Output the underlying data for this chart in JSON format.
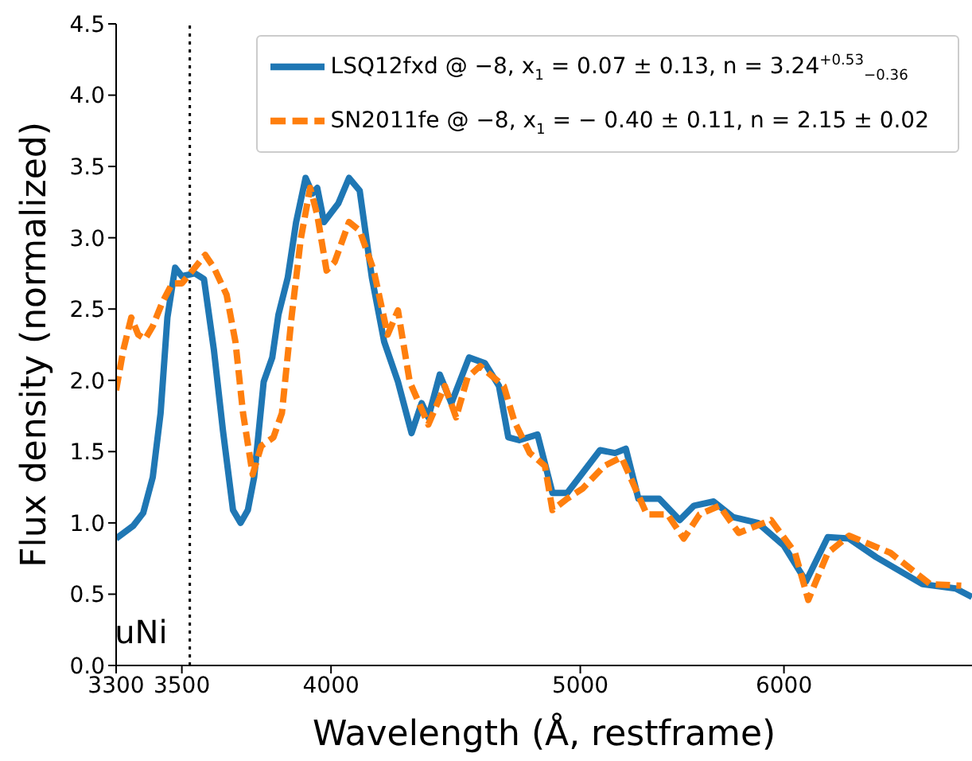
{
  "chart_data": {
    "type": "line",
    "xlabel": "Wavelength (Å, restframe)",
    "ylabel": "Flux density (normalized)",
    "log": "x",
    "xlim": [
      3300,
      7100
    ],
    "xticks": [
      3300,
      3500,
      4000,
      5000,
      6000
    ],
    "ylim": [
      0,
      4.5
    ],
    "yticks": [
      {
        "value": 0,
        "label": "0.0"
      },
      0.5,
      {
        "value": 1,
        "label": "1.0"
      },
      1.5,
      {
        "value": 2,
        "label": "2.0"
      },
      2.5,
      {
        "value": 3,
        "label": "3.0"
      },
      3.5,
      {
        "value": 4,
        "label": "4.0"
      },
      4.5
    ],
    "legend": "top right",
    "series": [
      {
        "name": "LSQ12fxd @ −8, x$_{1}$ = 0.07 ± 0.13, n = 3.24$^{+0.53}$$_{−0.36}$",
        "color": "#1f77b4",
        "line_style": "solid",
        "x": [
          3300,
          3351,
          3381,
          3410,
          3434,
          3455,
          3470,
          3479,
          3500,
          3541,
          3570,
          3602,
          3631,
          3664,
          3689,
          3713,
          3734,
          3766,
          3795,
          3816,
          3848,
          3877,
          3910,
          3934,
          3951,
          3975,
          4026,
          4065,
          4104,
          4149,
          4195,
          4247,
          4299,
          4338,
          4364,
          4409,
          4455,
          4526,
          4591,
          4649,
          4688,
          4734,
          4812,
          4877,
          4942,
          5010,
          5089,
          5158,
          5208,
          5267,
          5366,
          5465,
          5535,
          5634,
          5733,
          5861,
          6000,
          6120,
          6240,
          6360,
          6516,
          6792,
          6996,
          7100
        ],
        "values": [
          0.89,
          0.98,
          1.07,
          1.32,
          1.77,
          2.44,
          2.66,
          2.79,
          2.73,
          2.75,
          2.71,
          2.21,
          1.65,
          1.09,
          1.0,
          1.09,
          1.32,
          1.99,
          2.16,
          2.46,
          2.72,
          3.11,
          3.42,
          3.31,
          3.35,
          3.11,
          3.24,
          3.42,
          3.33,
          2.72,
          2.27,
          1.99,
          1.63,
          1.84,
          1.74,
          2.04,
          1.84,
          2.16,
          2.12,
          1.96,
          1.6,
          1.58,
          1.62,
          1.21,
          1.21,
          1.35,
          1.51,
          1.49,
          1.52,
          1.17,
          1.17,
          1.02,
          1.12,
          1.15,
          1.04,
          1.0,
          0.84,
          0.59,
          0.9,
          0.89,
          0.76,
          0.57,
          0.54,
          0.48
        ]
      },
      {
        "name": "SN2011fe @ −8, x$_{1}$ = − 0.40 ± 0.11, n = 2.15 ± 0.02",
        "color": "#ff7f0e",
        "line_style": "dashed",
        "x": [
          3300,
          3321,
          3345,
          3366,
          3387,
          3410,
          3440,
          3470,
          3500,
          3541,
          3574,
          3602,
          3643,
          3672,
          3697,
          3729,
          3758,
          3799,
          3828,
          3861,
          3893,
          3926,
          3951,
          3984,
          4013,
          4065,
          4104,
          4156,
          4208,
          4247,
          4292,
          4364,
          4429,
          4474,
          4520,
          4571,
          4669,
          4714,
          4779,
          4844,
          4877,
          4942,
          5010,
          5109,
          5188,
          5307,
          5406,
          5485,
          5564,
          5663,
          5762,
          5931,
          6060,
          6132,
          6240,
          6360,
          6600,
          6840,
          7032
        ],
        "values": [
          1.93,
          2.21,
          2.44,
          2.32,
          2.29,
          2.38,
          2.55,
          2.68,
          2.68,
          2.79,
          2.88,
          2.79,
          2.6,
          2.27,
          1.77,
          1.34,
          1.54,
          1.6,
          1.77,
          2.44,
          2.99,
          3.35,
          3.16,
          2.77,
          2.83,
          3.11,
          3.05,
          2.77,
          2.32,
          2.49,
          1.99,
          1.69,
          1.96,
          1.74,
          2.02,
          2.1,
          1.96,
          1.71,
          1.49,
          1.4,
          1.09,
          1.17,
          1.24,
          1.4,
          1.46,
          1.06,
          1.06,
          0.89,
          1.06,
          1.12,
          0.93,
          1.02,
          0.79,
          0.46,
          0.79,
          0.91,
          0.79,
          0.57,
          0.56
        ]
      }
    ],
    "ref_lines": [
      {
        "axis": "x",
        "value": 3525,
        "label": "uNi",
        "color": "#000000",
        "line_style": "dotted"
      }
    ]
  }
}
